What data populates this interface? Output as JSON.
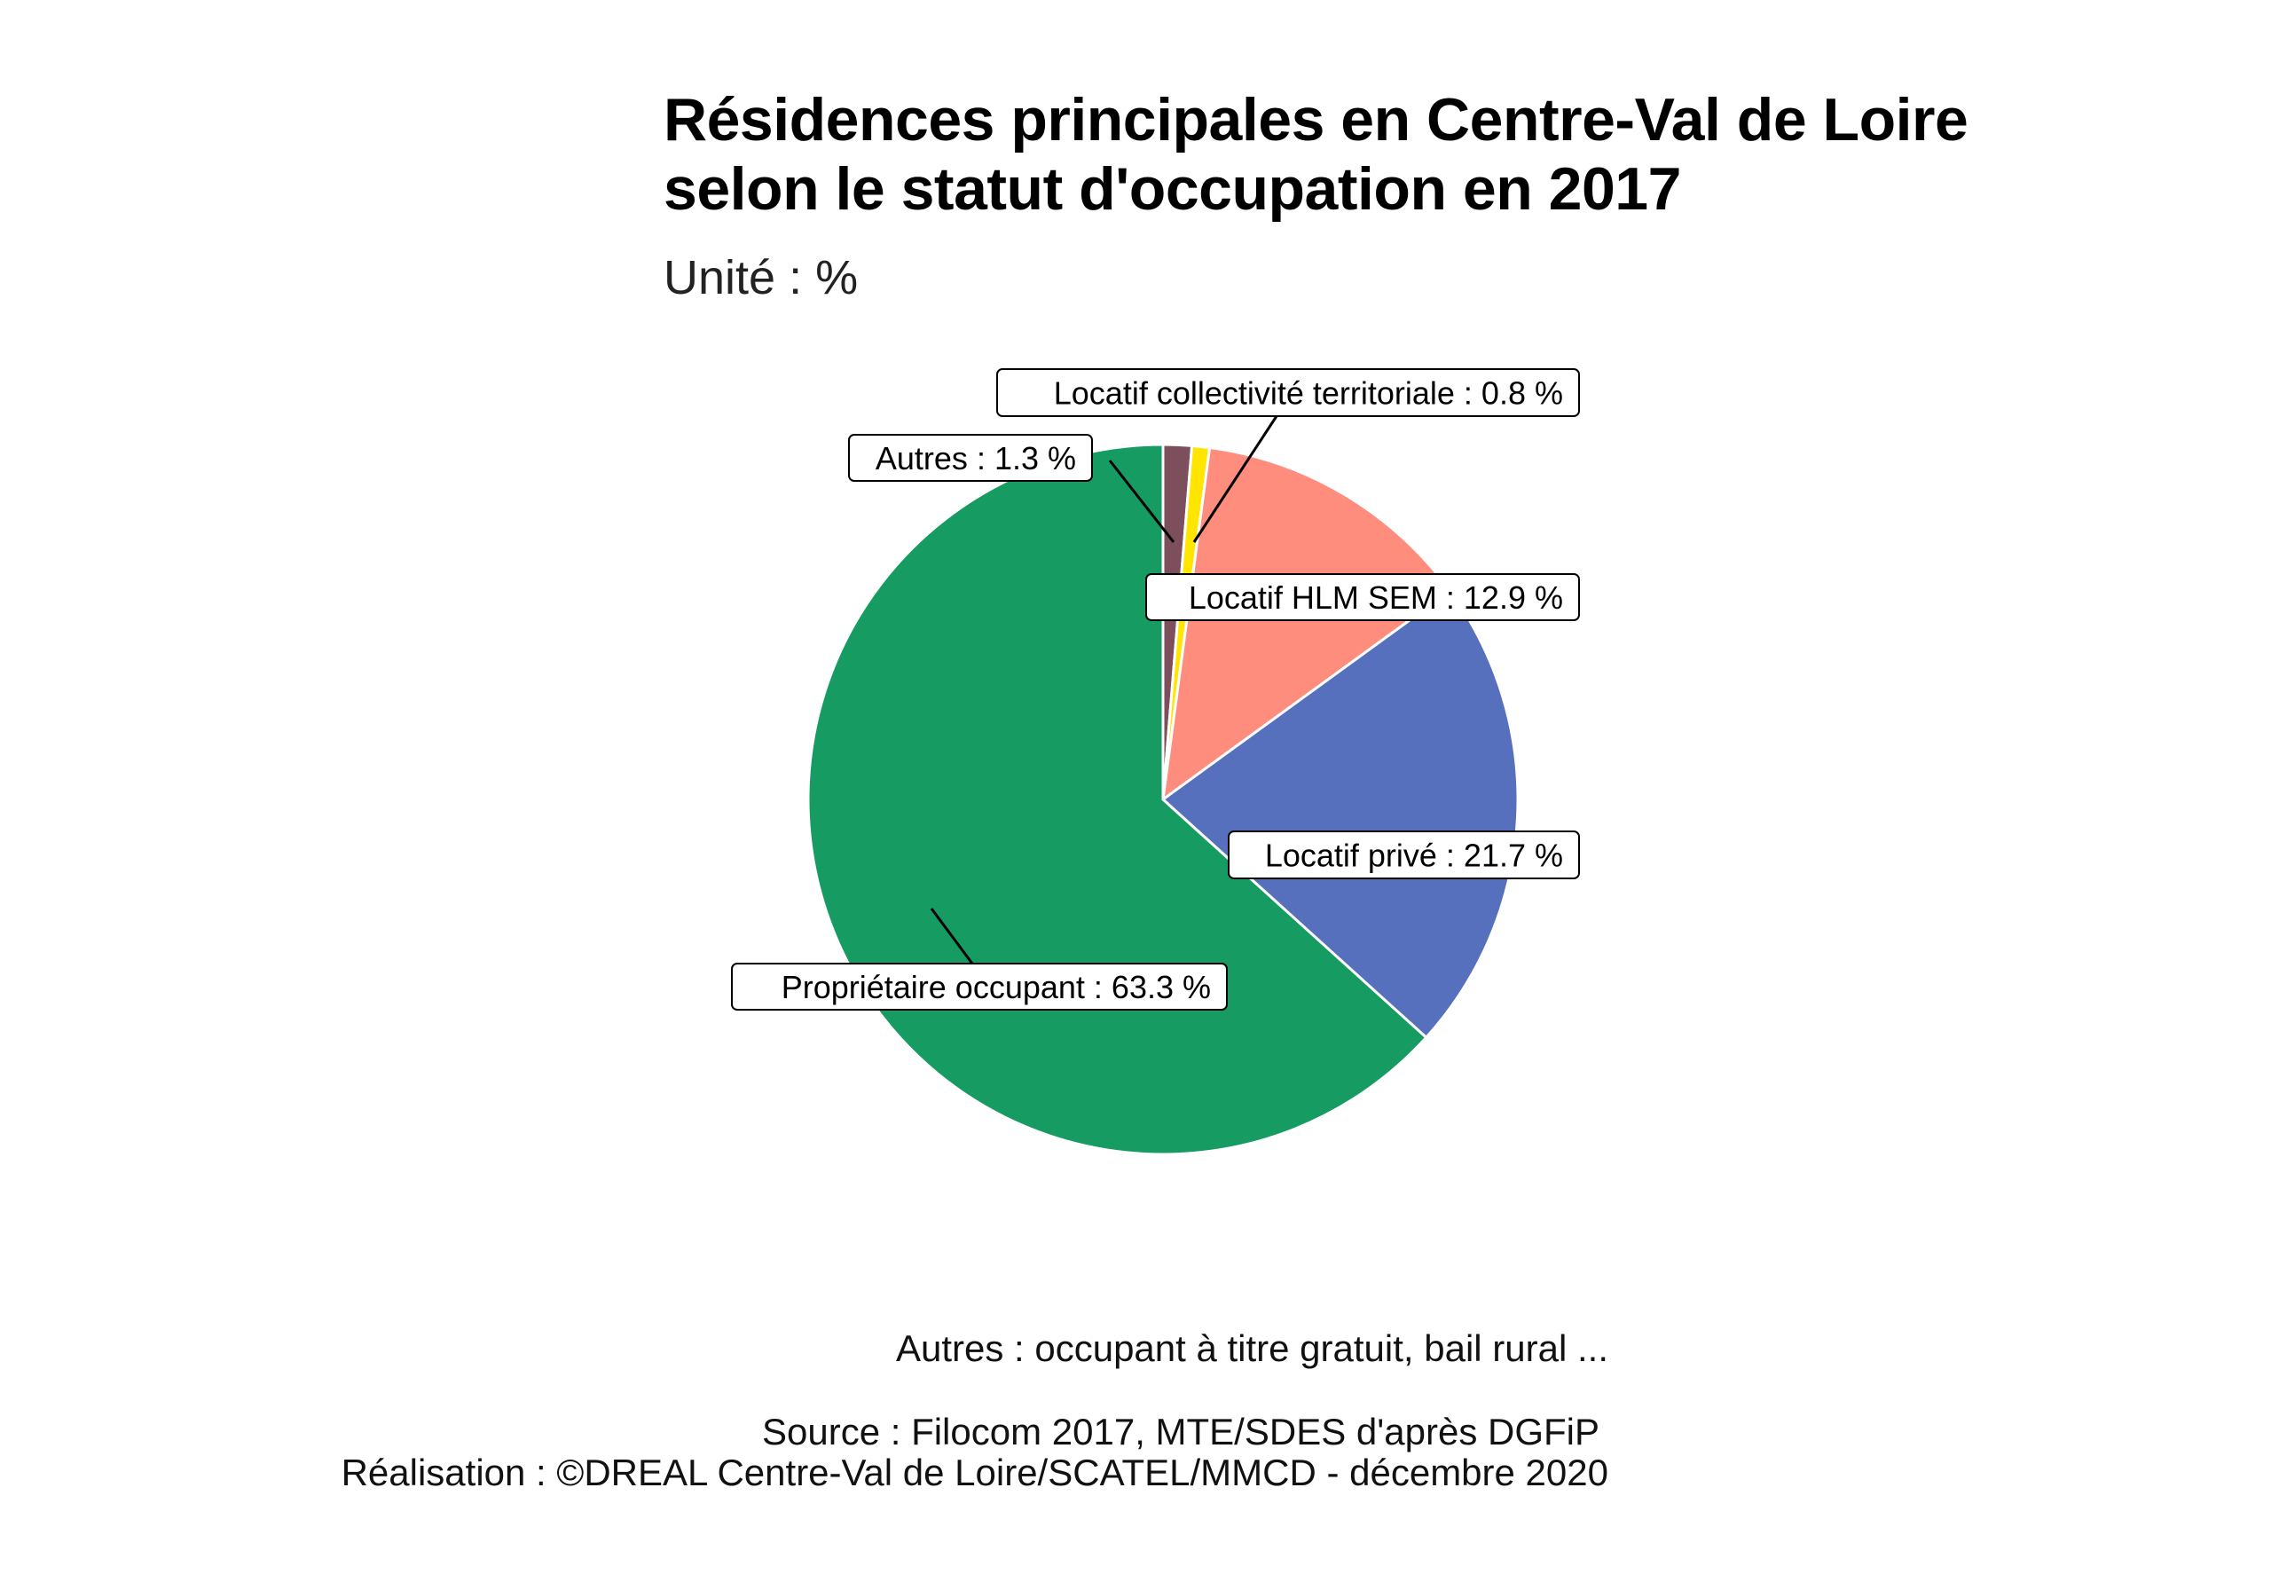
{
  "chart_data": {
    "type": "pie",
    "title_lines": [
      "Résidences principales en Centre-Val de Loire",
      "selon le statut d'occupation en 2017"
    ],
    "subtitle": "Unité : %",
    "direction": "clockwise from top",
    "slices": [
      {
        "name": "Autres",
        "value": 1.3,
        "label": "Autres : 1.3 %",
        "color": "#7D4E5B"
      },
      {
        "name": "Locatif collectivité territoriale",
        "value": 0.8,
        "label": "Locatif collectivité territoriale : 0.8 %",
        "color": "#FFE500"
      },
      {
        "name": "Locatif HLM SEM",
        "value": 12.9,
        "label": "Locatif HLM SEM : 12.9 %",
        "color": "#FF8D7E"
      },
      {
        "name": "Locatif privé",
        "value": 21.7,
        "label": "Locatif privé : 21.7 %",
        "color": "#5770BE"
      },
      {
        "name": "Propriétaire occupant",
        "value": 63.3,
        "label": "Propriétaire occupant : 63.3 %",
        "color": "#169B62"
      }
    ],
    "legend": "none"
  },
  "notes": {
    "autres": "Autres : occupant à titre gratuit, bail rural ...",
    "source": "Source : Filocom 2017, MTE/SDES d'après DGFiP",
    "realisation": "Réalisation : ©DREAL Centre-Val de Loire/SCATEL/MMCD - décembre 2020"
  }
}
